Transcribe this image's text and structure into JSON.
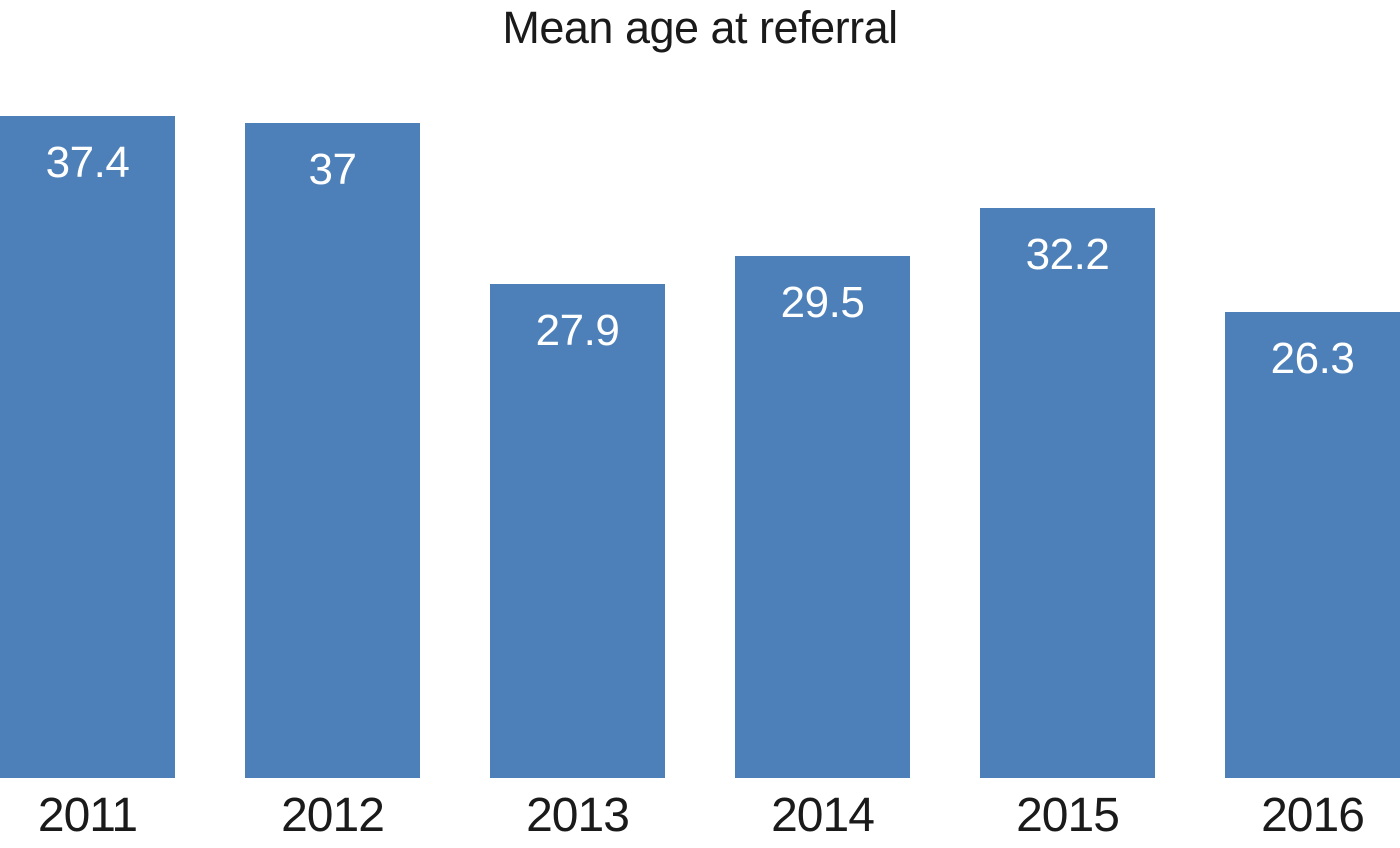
{
  "chart_data": {
    "type": "bar",
    "title": "Mean age at referral",
    "categories": [
      "2011",
      "2012",
      "2013",
      "2014",
      "2015",
      "2016"
    ],
    "values": [
      37.4,
      37,
      27.9,
      29.5,
      32.2,
      26.3
    ],
    "value_labels": [
      "37.4",
      "37",
      "27.9",
      "29.5",
      "32.2",
      "26.3"
    ],
    "xlabel": "",
    "ylabel": "",
    "ylim": [
      0,
      40
    ],
    "grid": false,
    "legend": false,
    "bar_color": "#4d80b9",
    "value_label_color": "#ffffff",
    "axis_text_color": "#1a1a1a",
    "background_color": "#ffffff"
  }
}
